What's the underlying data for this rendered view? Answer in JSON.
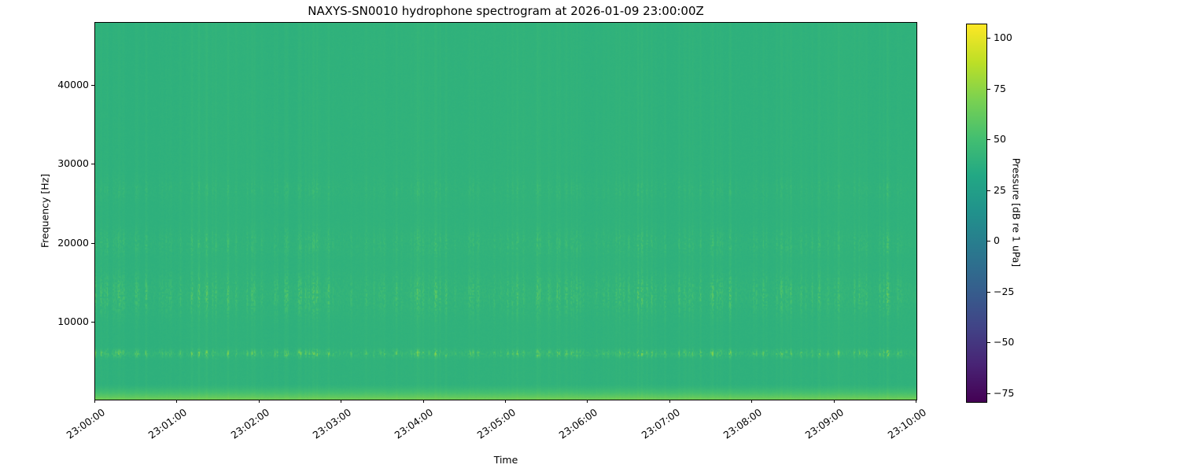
{
  "chart_data": {
    "type": "heatmap",
    "subtype": "spectrogram",
    "title": "NAXYS-SN0010 hydrophone spectrogram at 2026-01-09 23:00:00Z",
    "xlabel": "Time",
    "ylabel": "Frequency [Hz]",
    "x_ticks": [
      "23:00:00",
      "23:01:00",
      "23:02:00",
      "23:03:00",
      "23:04:00",
      "23:05:00",
      "23:06:00",
      "23:07:00",
      "23:08:00",
      "23:09:00",
      "23:10:00"
    ],
    "y_ticks": [
      {
        "label": "10000",
        "hz": 10000
      },
      {
        "label": "20000",
        "hz": 20000
      },
      {
        "label": "30000",
        "hz": 30000
      },
      {
        "label": "40000",
        "hz": 40000
      }
    ],
    "freq_range_hz": [
      200,
      47900
    ],
    "time_span_seconds": 600,
    "grid": false,
    "colorbar": {
      "label": "Pressure [dB re 1 uPa]",
      "ticks": [
        {
          "label": "100",
          "value": 100
        },
        {
          "label": "75",
          "value": 75
        },
        {
          "label": "50",
          "value": 50
        },
        {
          "label": "25",
          "value": 25
        },
        {
          "label": "0",
          "value": 0
        },
        {
          "label": "−25",
          "value": -25
        },
        {
          "label": "−50",
          "value": -50
        },
        {
          "label": "−75",
          "value": -75
        }
      ],
      "vmin_db": -79,
      "vmax_db": 107,
      "colormap": "viridis",
      "colormap_stops": [
        "#440154",
        "#482475",
        "#414487",
        "#355f8d",
        "#2a788e",
        "#21918c",
        "#22a884",
        "#44bf70",
        "#7ad151",
        "#bddf26",
        "#fde725"
      ]
    },
    "heatmap_model": {
      "background_db": 40,
      "stripe_fraction": 0.18,
      "stripe_full_height_gain_db": 3.5,
      "noise_bands": [
        {
          "center_hz": 6000,
          "sigma_hz": 320,
          "boost_db": 48,
          "dash_density": 0.55
        },
        {
          "center_hz": 13500,
          "sigma_hz": 1700,
          "boost_db": 26,
          "dash_density": 0.5
        },
        {
          "center_hz": 20000,
          "sigma_hz": 1200,
          "boost_db": 16,
          "dash_density": 0.45
        },
        {
          "center_hz": 26800,
          "sigma_hz": 1000,
          "boost_db": 10,
          "dash_density": 0.4
        }
      ],
      "low_freq_band": {
        "cutoff_hz": 2200,
        "boost_db": 30
      },
      "seed": 7
    }
  }
}
